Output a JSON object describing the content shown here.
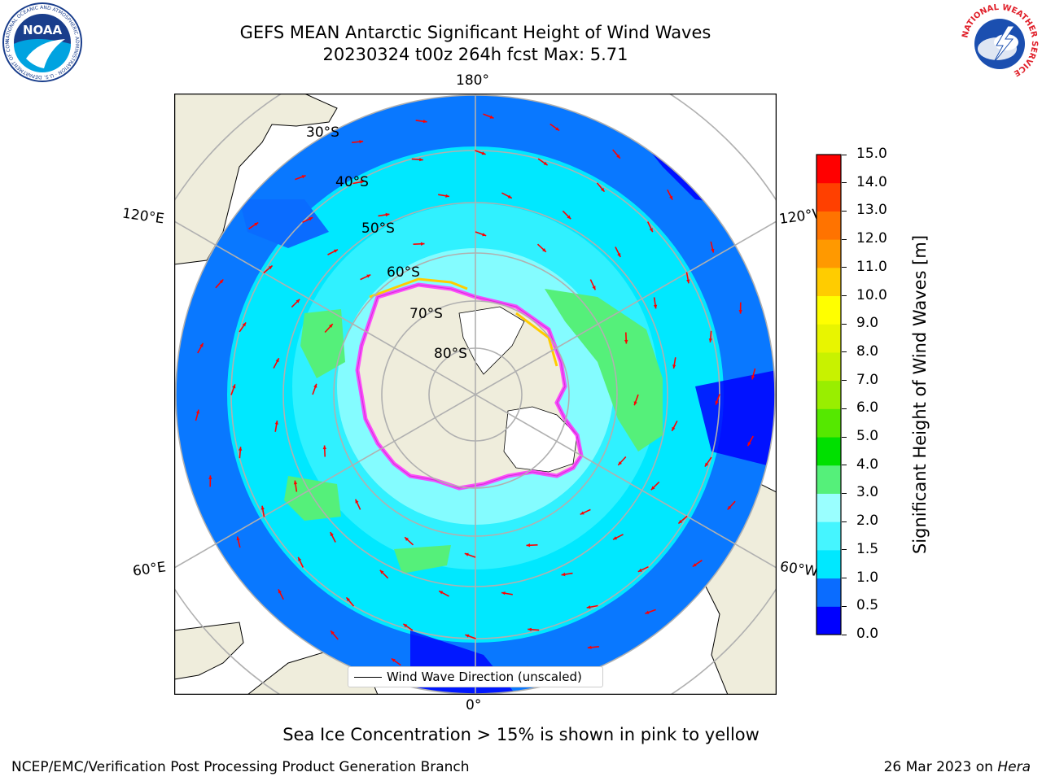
{
  "header": {
    "title_line1": "GEFS MEAN Antarctic Significant Height of Wind Waves",
    "title_line2": "20230324 t00z 264h fcst   Max: 5.71"
  },
  "logos": {
    "left_text": "NOAA",
    "left_ring_text": "NATIONAL OCEANIC AND ATMOSPHERIC ADMINISTRATION · U.S. DEPARTMENT OF COMMERCE",
    "right_ring_text": "NATIONAL WEATHER SERVICE"
  },
  "map": {
    "projection": "south-polar-stereographic",
    "longitude_labels": {
      "top": "180°",
      "bottom": "0°",
      "left_upper": "120°E",
      "left_lower": "60°E",
      "right_upper": "120°W",
      "right_lower": "60°W"
    },
    "latitude_labels": [
      "30°S",
      "40°S",
      "50°S",
      "60°S",
      "70°S",
      "80°S"
    ],
    "legend_label": "Wind Wave Direction (unscaled)",
    "arrow_color": "#ff0000",
    "land_color": "#efeddc",
    "ice_colors": [
      "#ff33ff",
      "#ffcc00"
    ]
  },
  "colorbar": {
    "label": "Significant Height of Wind Waves [m]",
    "tick_labels": [
      "0.0",
      "0.5",
      "1.0",
      "1.5",
      "2.0",
      "3.0",
      "4.0",
      "5.0",
      "6.0",
      "7.0",
      "8.0",
      "9.0",
      "10.0",
      "11.0",
      "12.0",
      "13.0",
      "14.0",
      "15.0"
    ],
    "colors": [
      "#0000ff",
      "#0a6cff",
      "#00e8ff",
      "#45f5ff",
      "#9affff",
      "#55f07a",
      "#00e000",
      "#55e800",
      "#99ee00",
      "#c8f200",
      "#e8f500",
      "#ffff00",
      "#ffcc00",
      "#ff9900",
      "#ff7300",
      "#ff4000",
      "#ff0000"
    ]
  },
  "footer": {
    "note": "Sea Ice Concentration > 15% is shown in pink to yellow",
    "left": "NCEP/EMC/Verification Post Processing Product Generation Branch",
    "right_prefix": "26 Mar 2023 on ",
    "right_host": "Hera"
  }
}
